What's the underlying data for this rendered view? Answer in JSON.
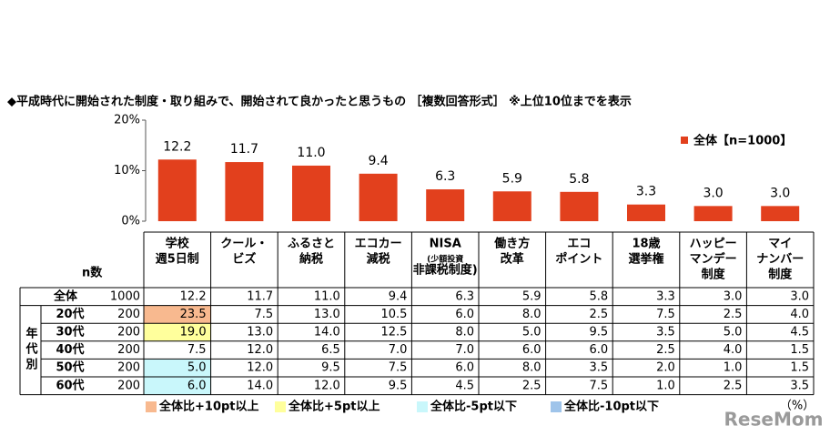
{
  "title": "◆平成時代に開始された制度・取り組みで、開始されて良かったと思うもの ［複数回答形式］ ※上位10位までを表示",
  "chart_data": {
    "type": "bar",
    "categories": [
      [
        "学校",
        "週5日制"
      ],
      [
        "クール・",
        "ビズ"
      ],
      [
        "ふるさと",
        "納税"
      ],
      [
        "エコカー",
        "減税"
      ],
      [
        "NISA",
        "(少額投資",
        "非課税制度)"
      ],
      [
        "働き方",
        "改革"
      ],
      [
        "エコ",
        "ポイント"
      ],
      [
        "18歳",
        "選挙権"
      ],
      [
        "ハッピー",
        "マンデー",
        "制度"
      ],
      [
        "マイ",
        "ナンバー",
        "制度"
      ]
    ],
    "series": [
      {
        "name": "全体【n=1000】",
        "color": "#e2401d",
        "values": [
          12.2,
          11.7,
          11.0,
          9.4,
          6.3,
          5.9,
          5.8,
          3.3,
          3.0,
          3.0
        ],
        "value_labels": [
          "12.2",
          "11.7",
          "11.0",
          "9.4",
          "6.3",
          "5.9",
          "5.8",
          "3.3",
          "3.0",
          "3.0"
        ]
      }
    ],
    "ylim": [
      0,
      20
    ],
    "yticks": [
      {
        "value": 0,
        "label": "0%"
      },
      {
        "value": 10,
        "label": "10%"
      },
      {
        "value": 20,
        "label": "20%"
      }
    ],
    "legend": "top-right"
  },
  "table": {
    "n_header": "n数",
    "group_label": "年代別",
    "total_row": {
      "label": "全体",
      "n": "1000"
    },
    "rows": [
      {
        "label": "20代",
        "n": "200",
        "values": [
          "23.5",
          "7.5",
          "13.0",
          "10.5",
          "6.0",
          "8.0",
          "2.5",
          "7.5",
          "2.5",
          "4.0"
        ],
        "fills": [
          "#f8b98f",
          null,
          null,
          null,
          null,
          null,
          null,
          null,
          null,
          null
        ]
      },
      {
        "label": "30代",
        "n": "200",
        "values": [
          "19.0",
          "13.0",
          "14.0",
          "12.5",
          "8.0",
          "5.0",
          "9.5",
          "3.5",
          "5.0",
          "4.5"
        ],
        "fills": [
          "#ffff9c",
          null,
          null,
          null,
          null,
          null,
          null,
          null,
          null,
          null
        ]
      },
      {
        "label": "40代",
        "n": "200",
        "values": [
          "7.5",
          "12.0",
          "6.5",
          "7.0",
          "7.0",
          "6.0",
          "6.0",
          "2.5",
          "4.0",
          "1.5"
        ]
      },
      {
        "label": "50代",
        "n": "200",
        "values": [
          "5.0",
          "12.0",
          "9.5",
          "7.5",
          "6.0",
          "8.0",
          "3.5",
          "2.0",
          "1.0",
          "1.5"
        ],
        "fills": [
          "#c9f7fb",
          null,
          null,
          null,
          null,
          null,
          null,
          null,
          null,
          null
        ]
      },
      {
        "label": "60代",
        "n": "200",
        "values": [
          "6.0",
          "14.0",
          "12.0",
          "9.5",
          "4.5",
          "2.5",
          "7.5",
          "1.0",
          "2.5",
          "3.5"
        ],
        "fills": [
          "#c9f7fb",
          null,
          null,
          null,
          null,
          null,
          null,
          null,
          null,
          null
        ]
      }
    ]
  },
  "highlight_legend": [
    {
      "label": "全体比+10pt以上",
      "color": "#f8b98f"
    },
    {
      "label": "全体比+5pt以上",
      "color": "#ffff9c"
    },
    {
      "label": "全体比-5pt以下",
      "color": "#c9f7fb"
    },
    {
      "label": "全体比-10pt以下",
      "color": "#9fc4ea"
    }
  ],
  "unit_note": "（%）",
  "watermark": "ReseMom"
}
